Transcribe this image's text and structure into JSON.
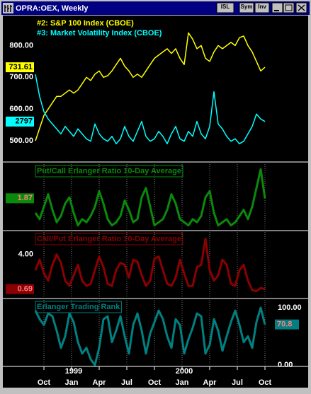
{
  "window": {
    "title": "OPRA:OEX, Weekly",
    "buttons": [
      "ISL",
      "Sym",
      "Inv"
    ]
  },
  "chart_data": [
    {
      "type": "line",
      "x": [
        -4,
        -2,
        0,
        2,
        4,
        6,
        8,
        10,
        12,
        14,
        16,
        18,
        20,
        22,
        24,
        26,
        28,
        30,
        32,
        34,
        36,
        38,
        40,
        42,
        44,
        46,
        48,
        50,
        52,
        54,
        56,
        58,
        60,
        62,
        64,
        66,
        68,
        70,
        72,
        74,
        76,
        78,
        80,
        82,
        84,
        86,
        88,
        90,
        92,
        94,
        96,
        98,
        100,
        102,
        104
      ],
      "xlim": [
        -4,
        108
      ],
      "xticks": [
        {
          "value": 0,
          "label": "Oct"
        },
        {
          "value": 13,
          "label": "Jan"
        },
        {
          "value": 26,
          "label": "Apr"
        },
        {
          "value": 39,
          "label": "Jul"
        },
        {
          "value": 52,
          "label": "Oct"
        },
        {
          "value": 65,
          "label": "Jan"
        },
        {
          "value": 78,
          "label": "Apr"
        },
        {
          "value": 91,
          "label": "Jul"
        },
        {
          "value": 104,
          "label": "Oct"
        }
      ],
      "year_ticks": [
        {
          "value": 14,
          "label": "1999"
        },
        {
          "value": 66,
          "label": "2000"
        }
      ],
      "ylim": [
        440,
        890
      ],
      "yticks": [
        {
          "value": 800,
          "label": "800.00"
        },
        {
          "value": 700,
          "label": "700.00"
        },
        {
          "value": 600,
          "label": "600.00"
        },
        {
          "value": 500,
          "label": "500.00"
        }
      ],
      "y2lim": [
        1250,
        7020
      ],
      "y_axis_side": "left",
      "show_last_value": true,
      "legend": "top-left",
      "xgrid": false,
      "series": [
        {
          "name": "#2: S&P 100 Index (CBOE)",
          "color": "#ffff00",
          "values": [
            500,
            540,
            580,
            600,
            620,
            640,
            640,
            650,
            660,
            650,
            660,
            680,
            700,
            690,
            710,
            720,
            700,
            705,
            720,
            740,
            760,
            735,
            720,
            700,
            710,
            700,
            720,
            740,
            760,
            770,
            780,
            790,
            775,
            790,
            760,
            740,
            840,
            820,
            790,
            800,
            760,
            750,
            780,
            800,
            790,
            800,
            810,
            800,
            825,
            830,
            800,
            780,
            750,
            720,
            731.61
          ]
        },
        {
          "name": "#3: Market Volatility Index (CBOE)",
          "color": "#00ffff",
          "axis": "y2",
          "values": [
            4700,
            3800,
            3200,
            2900,
            2700,
            2500,
            2300,
            2600,
            2400,
            2200,
            2500,
            2300,
            2100,
            2000,
            2700,
            2300,
            2100,
            2000,
            2200,
            1900,
            2100,
            2600,
            2200,
            2000,
            2400,
            2800,
            2200,
            2000,
            2100,
            2400,
            2200,
            1900,
            2300,
            2600,
            2100,
            2000,
            2400,
            2200,
            2800,
            2300,
            2100,
            2600,
            4000,
            2700,
            2500,
            2200,
            2000,
            2100,
            1900,
            2000,
            2300,
            2600,
            3100,
            2900,
            2797
          ]
        }
      ]
    },
    {
      "type": "line",
      "ylim": [
        0.9,
        2.9
      ],
      "yticks": [],
      "y_axis_side": "left",
      "show_last_value": true,
      "legend": "top-left",
      "xgrid": true,
      "series": [
        {
          "name": "Put/Call Erlanger Ratio 10-Day Average",
          "color": "#0a8a0a",
          "values": [
            1.4,
            1.2,
            1.6,
            2.0,
            1.5,
            1.1,
            1.3,
            1.7,
            1.9,
            1.4,
            1.0,
            1.2,
            1.1,
            1.3,
            1.6,
            2.1,
            1.7,
            1.2,
            1.0,
            1.1,
            1.3,
            1.8,
            1.5,
            1.1,
            1.2,
            1.9,
            2.2,
            1.6,
            1.0,
            1.1,
            1.2,
            1.5,
            2.0,
            1.7,
            1.2,
            1.1,
            1.0,
            1.2,
            1.1,
            1.3,
            1.9,
            2.1,
            1.4,
            1.0,
            1.1,
            1.2,
            1.0,
            1.1,
            1.3,
            1.5,
            1.2,
            1.6,
            2.2,
            2.8,
            1.87
          ]
        }
      ]
    },
    {
      "type": "line",
      "ylim": [
        0,
        6
      ],
      "yticks": [
        {
          "value": 4,
          "label": "4.00"
        }
      ],
      "y_axis_side": "left",
      "show_last_value": true,
      "legend": "top-left",
      "xgrid": true,
      "series": [
        {
          "name": "Call/Put Erlanger Ratio 10-Day Average",
          "color": "#8b0000",
          "values": [
            2.5,
            3.5,
            2.2,
            1.5,
            3.0,
            4.0,
            3.2,
            1.5,
            1.0,
            2.0,
            3.0,
            1.5,
            1.0,
            1.2,
            2.5,
            3.8,
            2.8,
            1.2,
            1.0,
            2.5,
            3.2,
            3.0,
            1.8,
            3.5,
            3.3,
            2.0,
            1.0,
            1.5,
            3.6,
            3.8,
            2.5,
            1.2,
            1.0,
            1.8,
            3.5,
            2.2,
            1.0,
            1.0,
            2.8,
            3.0,
            5.5,
            2.5,
            1.5,
            2.0,
            3.5,
            3.0,
            1.2,
            1.0,
            2.5,
            3.0,
            1.5,
            0.6,
            0.5,
            0.8,
            0.69
          ]
        }
      ]
    },
    {
      "type": "line",
      "ylim": [
        0,
        100
      ],
      "yticks": [
        {
          "value": 100,
          "label": "100.00"
        },
        {
          "value": 0,
          "label": "0.00"
        }
      ],
      "y_axis_side": "right",
      "show_last_value": true,
      "legend": "top-left",
      "xgrid": true,
      "series": [
        {
          "name": "Erlanger Trading Rank",
          "color": "#008080",
          "values": [
            95,
            80,
            70,
            90,
            85,
            60,
            30,
            50,
            90,
            75,
            40,
            20,
            30,
            10,
            0,
            30,
            80,
            85,
            40,
            60,
            85,
            50,
            20,
            70,
            90,
            60,
            20,
            55,
            75,
            95,
            80,
            50,
            30,
            80,
            70,
            20,
            45,
            65,
            90,
            85,
            20,
            35,
            80,
            60,
            25,
            50,
            75,
            95,
            70,
            40,
            50,
            30,
            75,
            100,
            70.8
          ]
        }
      ]
    }
  ]
}
